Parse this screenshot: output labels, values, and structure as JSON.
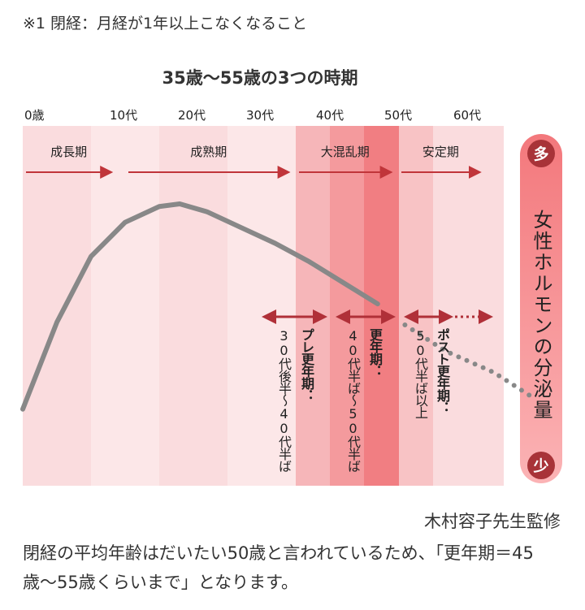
{
  "footnote": "※1 閉経：月経が1年以上こなくなること",
  "credit": "木村容子先生監修",
  "body_text": "閉経の平均年齢はだいたい50歳と言われているため、「更年期＝45歳〜55歳くらいまで」となります。",
  "chart_data": {
    "type": "line",
    "title": "35歳〜55歳の3つの時期",
    "x_ticks": [
      "0歳",
      "10代",
      "20代",
      "30代",
      "40代",
      "50代",
      "60代"
    ],
    "phases": [
      {
        "label": "成長期",
        "from_age": 0,
        "to_age": 13
      },
      {
        "label": "成熟期",
        "from_age": 15,
        "to_age": 39
      },
      {
        "label": "大混乱期",
        "from_age": 40,
        "to_age": 54
      },
      {
        "label": "安定期",
        "from_age": 55,
        "to_age": 67
      }
    ],
    "periods": [
      {
        "name": "プレ更年期：",
        "range": "30代後半〜40代半ば",
        "from_age": 35,
        "to_age": 45
      },
      {
        "name": "更年期：",
        "range": "40代半ば〜50代半ば",
        "from_age": 45,
        "to_age": 55
      },
      {
        "name": "ポスト更年期：",
        "range": "50代半ば以上",
        "from_age": 55,
        "to_age": 72
      }
    ],
    "ylabel": "女性ホルモンの分泌量",
    "y_high": "多",
    "y_low": "少",
    "series": [
      {
        "points": [
          [
            0,
            22
          ],
          [
            5,
            55
          ],
          [
            10,
            80
          ],
          [
            15,
            93
          ],
          [
            20,
            99
          ],
          [
            23,
            100
          ],
          [
            27,
            97
          ],
          [
            32,
            91
          ],
          [
            37,
            85
          ],
          [
            42,
            78
          ],
          [
            47,
            70
          ],
          [
            52,
            62
          ],
          [
            56,
            54
          ],
          [
            62,
            44
          ],
          [
            69,
            36
          ],
          [
            75,
            26
          ]
        ]
      }
    ],
    "solid_until_age": 55,
    "colors": {
      "curve": "#888888",
      "arrow": "#c0353a",
      "period_arrow": "#b03038",
      "badge": "#a83338",
      "y_bar": "#f37a7d"
    }
  }
}
